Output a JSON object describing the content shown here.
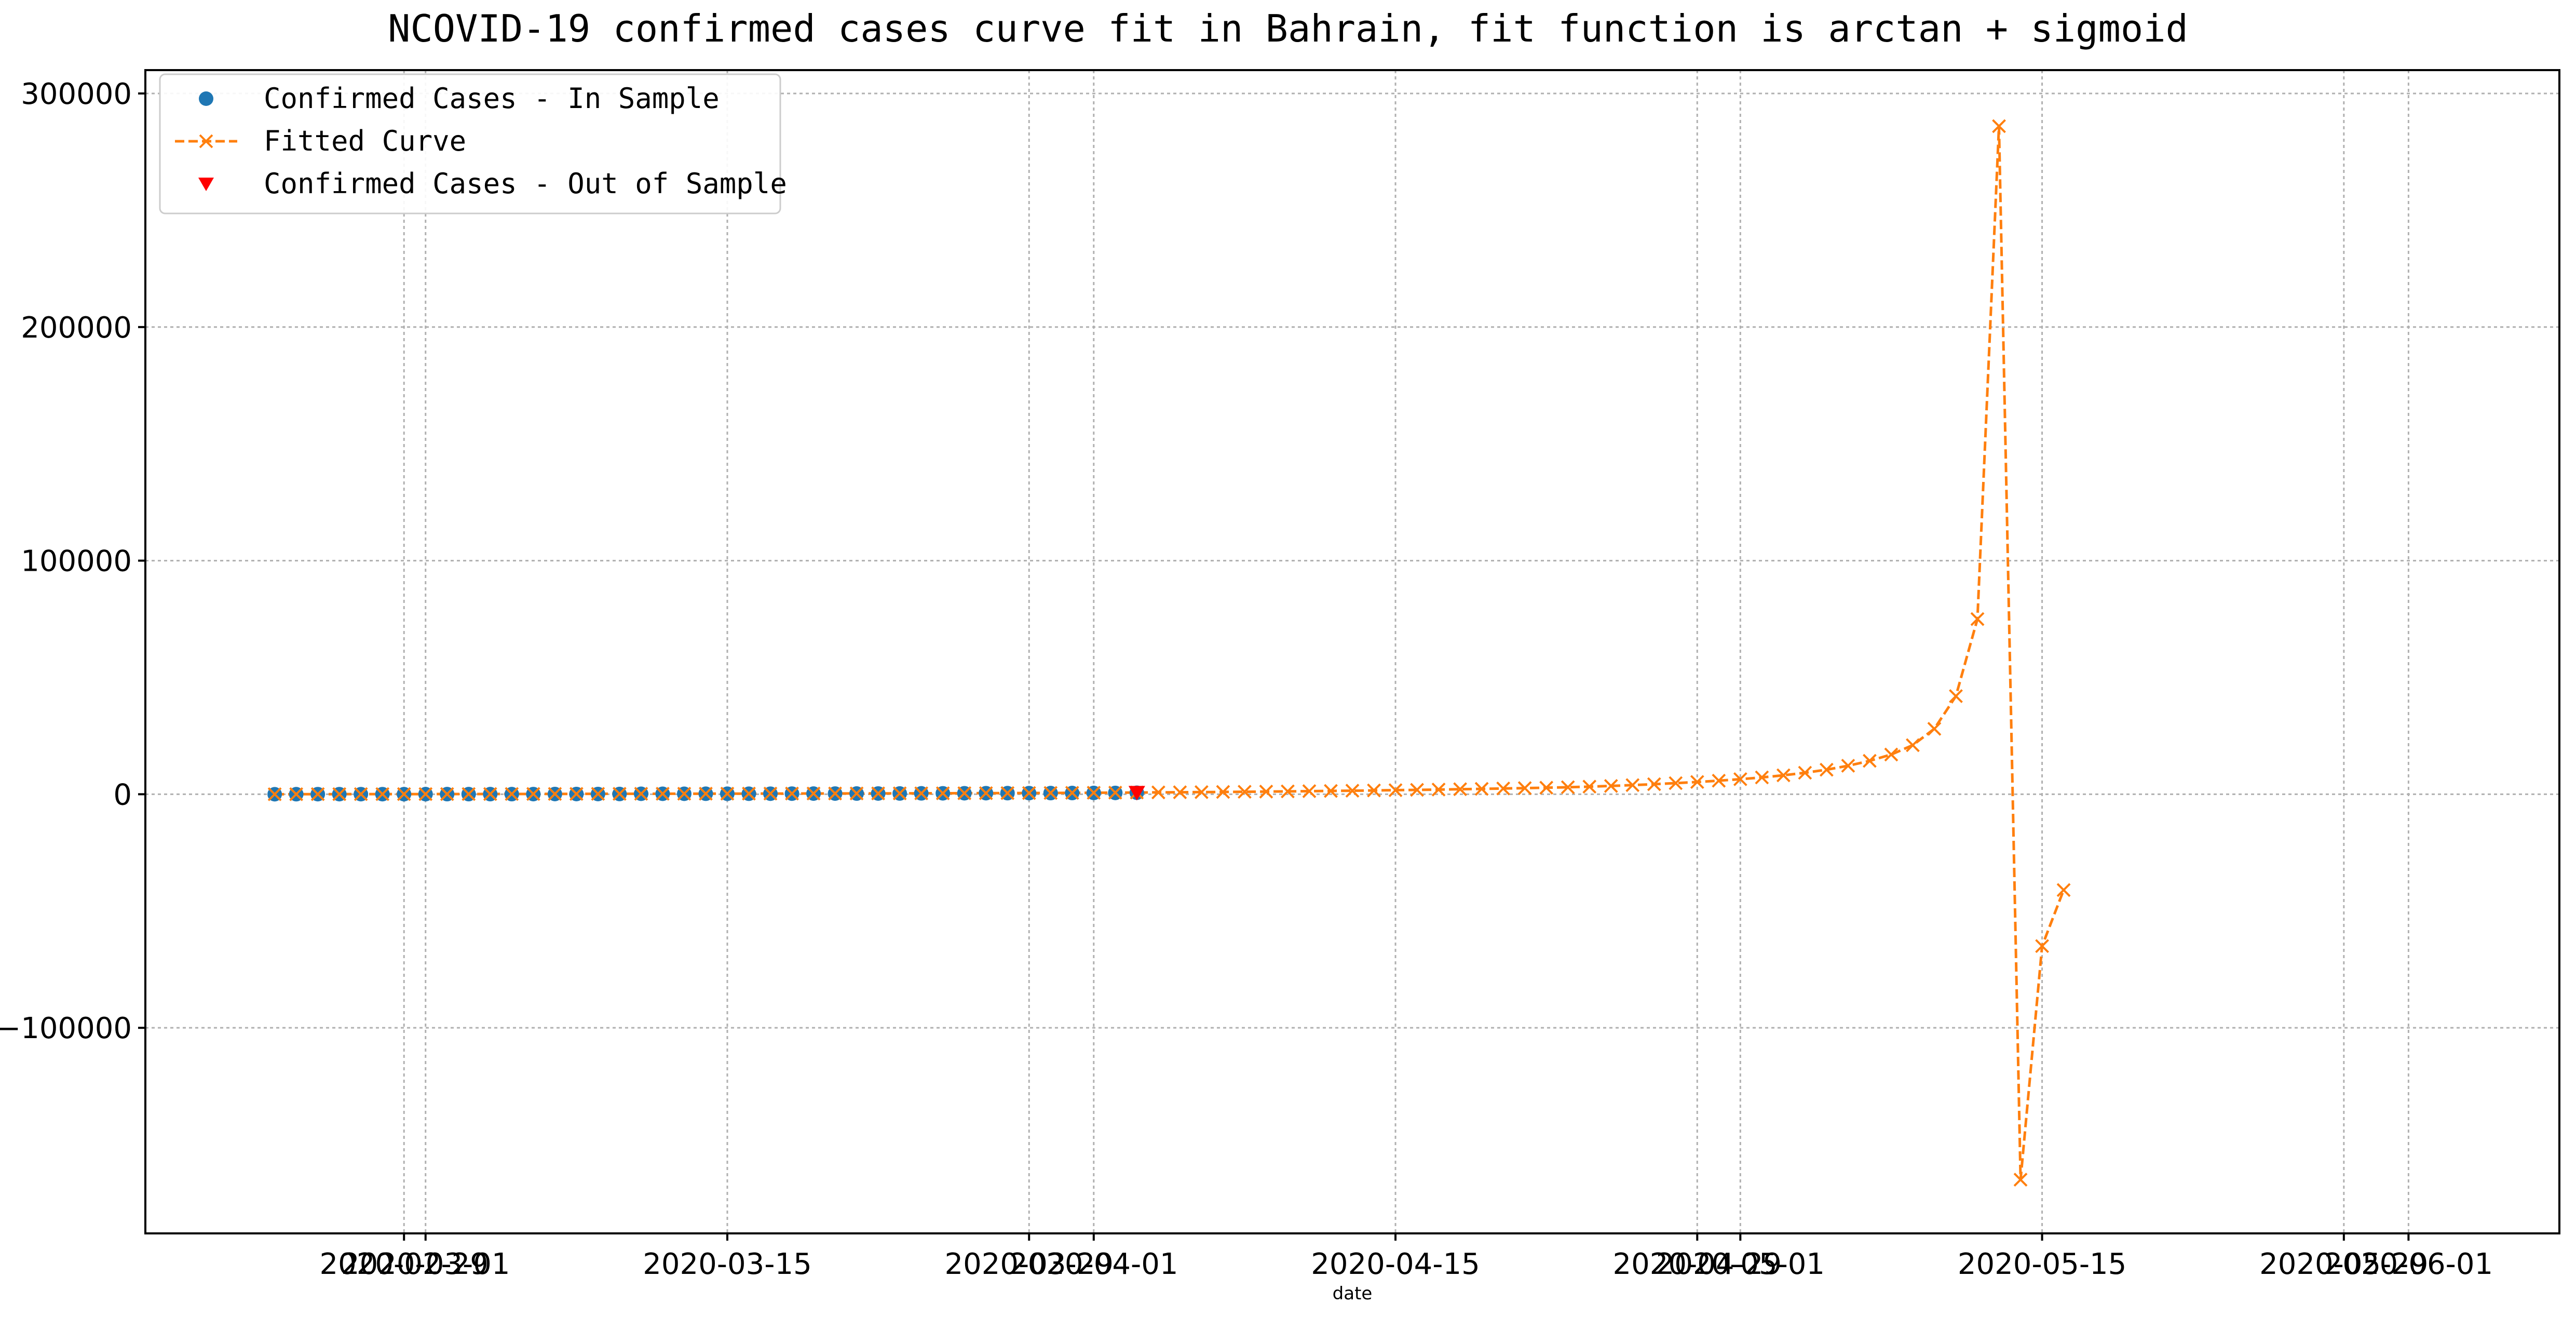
{
  "chart_data": {
    "type": "line",
    "title": "NCOVID-19 confirmed cases curve fit in Bahrain, fit function is arctan + sigmoid",
    "xlabel": "date",
    "ylabel": "",
    "grid": true,
    "legend_position": "top-left",
    "xlim": [
      "2020-02-17",
      "2020-06-08"
    ],
    "ylim": [
      -188000,
      310000
    ],
    "x_ticks": [
      {
        "date": "2020-02-29",
        "label": "2020-02-29"
      },
      {
        "date": "2020-03-01",
        "label": "2020-03-01"
      },
      {
        "date": "2020-03-15",
        "label": "2020-03-15"
      },
      {
        "date": "2020-03-29",
        "label": "2020-03-29"
      },
      {
        "date": "2020-04-01",
        "label": "2020-04-01"
      },
      {
        "date": "2020-04-15",
        "label": "2020-04-15"
      },
      {
        "date": "2020-04-29",
        "label": "2020-04-29"
      },
      {
        "date": "2020-05-01",
        "label": "2020-05-01"
      },
      {
        "date": "2020-05-15",
        "label": "2020-05-15"
      },
      {
        "date": "2020-05-29",
        "label": "2020-05-29"
      },
      {
        "date": "2020-06-01",
        "label": "2020-06-01"
      }
    ],
    "y_ticks": [
      {
        "value": 300000,
        "label": "300000"
      },
      {
        "value": 200000,
        "label": "200000"
      },
      {
        "value": 100000,
        "label": "100000"
      },
      {
        "value": 0,
        "label": "0"
      },
      {
        "value": -100000,
        "label": "−100000"
      }
    ],
    "colors": {
      "in_sample": "#1f77b4",
      "fitted": "#ff7f0e",
      "out_of_sample": "#ff0000",
      "grid": "#b0b0b0"
    },
    "series": [
      {
        "name": "Confirmed Cases - In Sample",
        "style": "markers",
        "marker": "circle",
        "color": "#1f77b4",
        "start_date": "2020-02-23",
        "values": [
          1,
          23,
          33,
          33,
          36,
          38,
          40,
          47,
          49,
          49,
          52,
          55,
          60,
          85,
          85,
          95,
          110,
          195,
          195,
          195,
          210,
          214,
          214,
          228,
          256,
          278,
          285,
          305,
          308,
          332,
          377,
          392,
          419,
          458,
          466,
          476,
          499,
          515,
          567,
          569,
          643
        ]
      },
      {
        "name": "Fitted Curve",
        "style": "dashed",
        "marker": "x",
        "color": "#ff7f0e",
        "start_date": "2020-02-23",
        "values": [
          2,
          20,
          35,
          45,
          52,
          58,
          64,
          70,
          78,
          88,
          100,
          112,
          125,
          140,
          155,
          170,
          186,
          200,
          214,
          228,
          240,
          252,
          265,
          278,
          292,
          306,
          320,
          336,
          352,
          370,
          390,
          412,
          436,
          462,
          490,
          522,
          556,
          594,
          636,
          682,
          732,
          787,
          846,
          910,
          979,
          1054,
          1134,
          1220,
          1312,
          1410,
          1515,
          1627,
          1746,
          1872,
          2006,
          2147,
          2296,
          2453,
          2620,
          2800,
          3000,
          3250,
          3550,
          3900,
          4300,
          4750,
          5250,
          5800,
          6450,
          7200,
          8100,
          9200,
          10500,
          12200,
          14300,
          17000,
          21000,
          28000,
          42000,
          75000,
          286000,
          -165000,
          -65000,
          -41000
        ]
      },
      {
        "name": "Confirmed Cases - Out of Sample",
        "style": "markers",
        "marker": "triangle-down",
        "color": "#ff0000",
        "x": [
          "2020-04-03"
        ],
        "values": [
          672
        ]
      }
    ]
  }
}
